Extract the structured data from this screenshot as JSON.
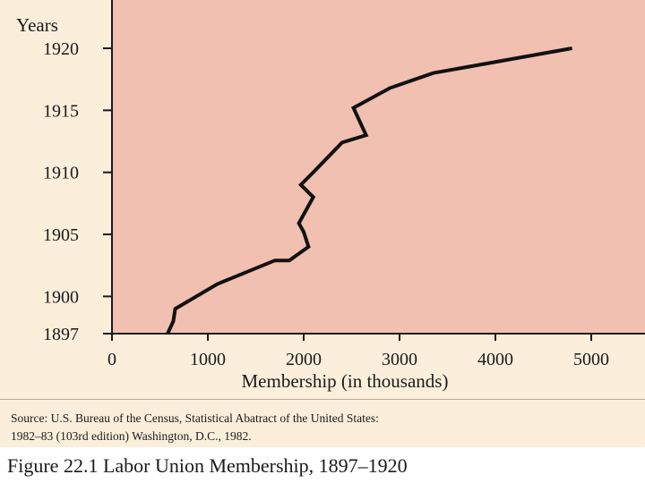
{
  "chart_data": {
    "type": "line",
    "title": "",
    "ylabel": "Years",
    "xlabel": "Membership (in thousands)",
    "x_ticks": [
      "0",
      "1000",
      "2000",
      "3000",
      "4000",
      "5000"
    ],
    "y_ticks": [
      "1897",
      "1900",
      "1905",
      "1910",
      "1915",
      "1920"
    ],
    "xlim": [
      0,
      5000
    ],
    "ylim": [
      1897,
      1920
    ],
    "grid": false,
    "series": [
      {
        "points": [
          {
            "membership": 580,
            "year": 1897
          },
          {
            "membership": 640,
            "year": 1898
          },
          {
            "membership": 660,
            "year": 1899
          },
          {
            "membership": 1100,
            "year": 1901
          },
          {
            "membership": 1700,
            "year": 1902.9
          },
          {
            "membership": 1850,
            "year": 1902.9
          },
          {
            "membership": 2050,
            "year": 1904
          },
          {
            "membership": 2000,
            "year": 1905.2
          },
          {
            "membership": 1950,
            "year": 1905.9
          },
          {
            "membership": 2100,
            "year": 1908
          },
          {
            "membership": 1970,
            "year": 1909
          },
          {
            "membership": 2100,
            "year": 1910
          },
          {
            "membership": 2400,
            "year": 1912.4
          },
          {
            "membership": 2650,
            "year": 1913
          },
          {
            "membership": 2520,
            "year": 1915.2
          },
          {
            "membership": 2900,
            "year": 1916.8
          },
          {
            "membership": 3350,
            "year": 1918
          },
          {
            "membership": 4800,
            "year": 1920
          }
        ]
      }
    ]
  },
  "colors": {
    "plot_background": "#f1c0b1",
    "panel_background": "#fbefdc",
    "line": "#111111"
  },
  "source": {
    "line1": "Source: U.S. Bureau of the Census, Statistical Abatract of the United States:",
    "line2": "1982–83 (103rd edition) Washington, D.C., 1982."
  },
  "caption": "Figure 22.1  Labor Union Membership, 1897–1920"
}
